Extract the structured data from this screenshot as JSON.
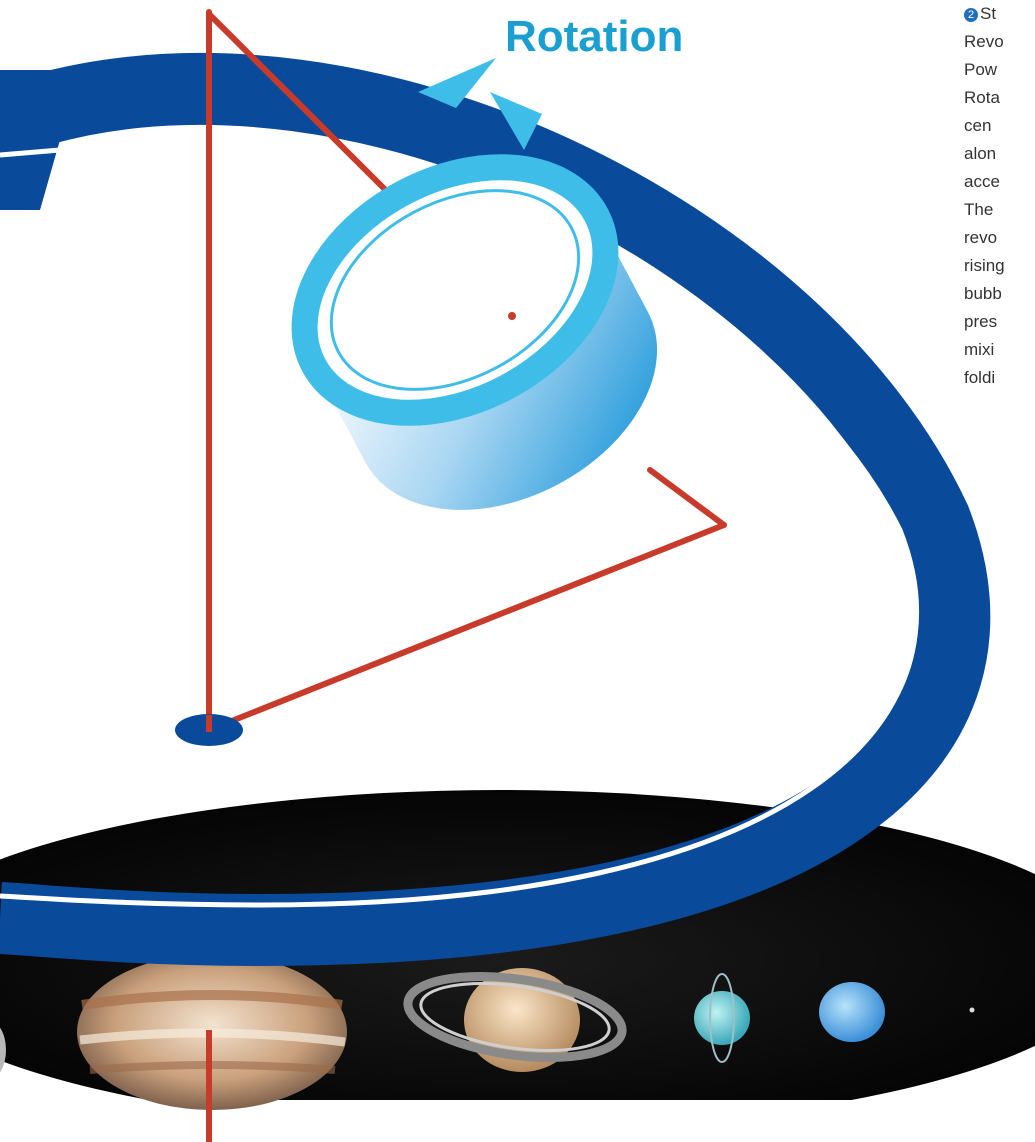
{
  "diagram": {
    "title": "Rotation",
    "side_text": {
      "step_number": "2",
      "lines": [
        "St",
        "Revo",
        "Pow",
        "Rota",
        "cen",
        "alon",
        "acce",
        "The",
        "revo",
        "rising",
        "bubb",
        "pres",
        "mixi",
        "foldi"
      ]
    },
    "colors": {
      "ring_blue": "#0a4a9a",
      "rotation_cyan": "#3fbde9",
      "triangle_red": "#c83a2a",
      "space_black": "#050505"
    }
  }
}
